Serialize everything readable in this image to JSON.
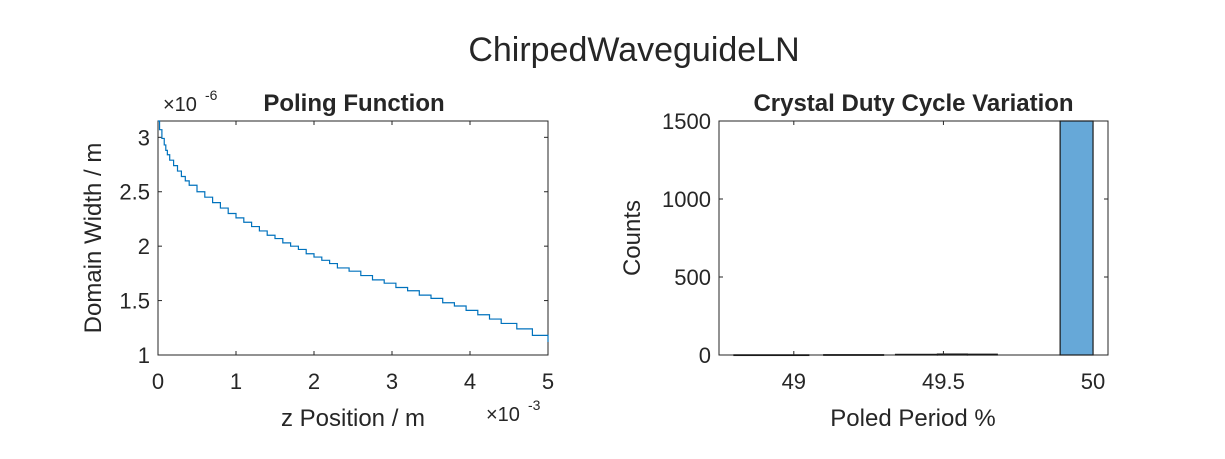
{
  "figure": {
    "title": "ChirpedWaveguideLN"
  },
  "chart_data": [
    {
      "type": "line",
      "title": "Poling Function",
      "xlabel": "z Position / m",
      "ylabel": "Domain Width / m",
      "x_exponent": "×10",
      "x_exponent_power": "-3",
      "y_exponent": "×10",
      "y_exponent_power": "-6",
      "xlim": [
        0,
        5
      ],
      "ylim": [
        1,
        3.15
      ],
      "xticks": [
        0,
        1,
        2,
        3,
        4,
        5
      ],
      "xtick_labels": [
        "0",
        "1",
        "2",
        "3",
        "4",
        "5"
      ],
      "yticks": [
        1,
        1.5,
        2,
        2.5,
        3
      ],
      "ytick_labels": [
        "1",
        "1.5",
        "2",
        "2.5",
        "3"
      ],
      "grid": false,
      "line_color": "#0072BD",
      "series": [
        {
          "step": true,
          "x": [
            0,
            0.02,
            0.05,
            0.08,
            0.1,
            0.12,
            0.15,
            0.2,
            0.25,
            0.3,
            0.35,
            0.4,
            0.5,
            0.6,
            0.7,
            0.8,
            0.9,
            1.0,
            1.1,
            1.2,
            1.3,
            1.4,
            1.5,
            1.6,
            1.7,
            1.8,
            1.9,
            2.0,
            2.1,
            2.2,
            2.3,
            2.45,
            2.6,
            2.75,
            2.9,
            3.05,
            3.2,
            3.35,
            3.5,
            3.65,
            3.8,
            3.95,
            4.1,
            4.25,
            4.4,
            4.6,
            4.8,
            5.0
          ],
          "y": [
            3.15,
            3.07,
            2.99,
            2.93,
            2.88,
            2.84,
            2.79,
            2.74,
            2.69,
            2.64,
            2.6,
            2.56,
            2.5,
            2.45,
            2.4,
            2.35,
            2.3,
            2.26,
            2.22,
            2.18,
            2.14,
            2.1,
            2.07,
            2.03,
            2.0,
            1.97,
            1.93,
            1.9,
            1.87,
            1.84,
            1.8,
            1.77,
            1.73,
            1.69,
            1.66,
            1.62,
            1.59,
            1.55,
            1.52,
            1.48,
            1.45,
            1.41,
            1.37,
            1.33,
            1.29,
            1.24,
            1.18,
            1.12
          ]
        }
      ]
    },
    {
      "type": "bar",
      "subtype": "histogram",
      "title": "Crystal Duty Cycle Variation",
      "xlabel": "Poled Period %",
      "ylabel": "Counts",
      "xlim": [
        48.75,
        50.05
      ],
      "ylim": [
        0,
        1500
      ],
      "xticks": [
        49,
        49.5,
        50
      ],
      "xtick_labels": [
        "49",
        "49.5",
        "50"
      ],
      "yticks": [
        0,
        500,
        1000,
        1500
      ],
      "ytick_labels": [
        "0",
        "500",
        "1000",
        "1500"
      ],
      "grid": false,
      "bar_color": "#66A8D8",
      "bins": [
        {
          "left": 48.8,
          "right": 49.05,
          "count": 1
        },
        {
          "left": 49.1,
          "right": 49.3,
          "count": 2
        },
        {
          "left": 49.34,
          "right": 49.48,
          "count": 4
        },
        {
          "left": 49.48,
          "right": 49.58,
          "count": 6
        },
        {
          "left": 49.58,
          "right": 49.68,
          "count": 5
        },
        {
          "left": 49.89,
          "right": 50.0,
          "count": 1500
        }
      ]
    }
  ]
}
